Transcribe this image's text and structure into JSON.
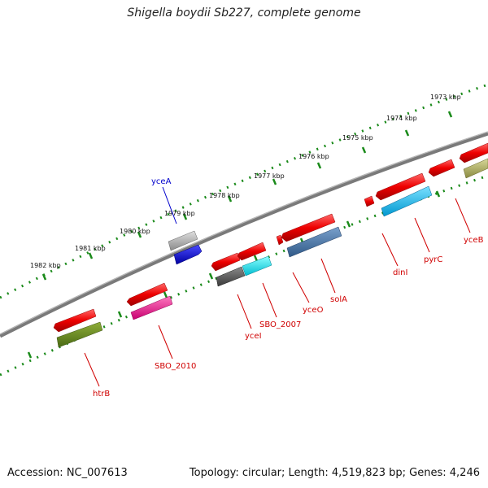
{
  "title": "Shigella boydii Sb227, complete genome",
  "footer": {
    "accession": "Accession: NC_007613",
    "summary": "Topology: circular; Length: 4,519,823 bp; Genes: 4,246"
  },
  "colors": {
    "backbone": "#808080",
    "tick_ruler": "#1a8a1a",
    "label_red": "#d00000",
    "label_blue": "#0000cc"
  },
  "ruler_labels": [
    "1973 kbp",
    "1974 kbp",
    "1975 kbp",
    "1976 kbp",
    "1977 kbp",
    "1978 kbp",
    "1979 kbp",
    "1980 kbp",
    "1981 kbp",
    "1982 kbp"
  ],
  "gene_labels": {
    "yceA": "yceA",
    "htrB": "htrB",
    "SBO_2010": "SBO_2010",
    "yceI": "yceI",
    "SBO_2007": "SBO_2007",
    "yceO": "yceO",
    "solA": "solA",
    "dinI": "dinI",
    "pyrC": "pyrC",
    "yceB": "yceB"
  }
}
